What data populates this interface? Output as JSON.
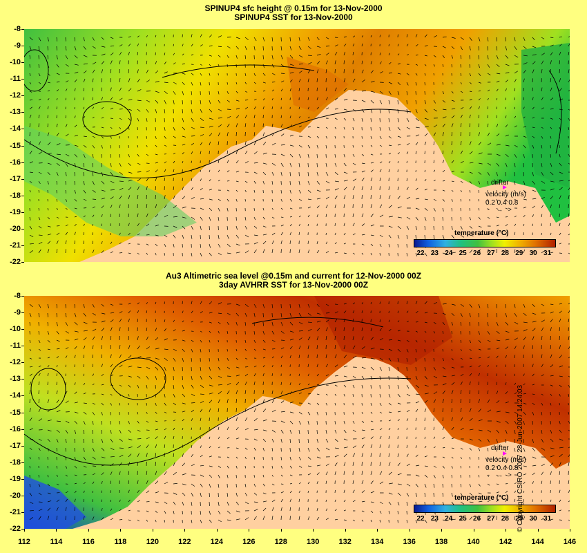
{
  "top_panel": {
    "title_line1": "SPINUP4 sfc height @ 0.15m for 13-Nov-2000",
    "title_line2": "SPINUP4 SST for 13-Nov-2000"
  },
  "bottom_panel": {
    "title_line1": "Au3 Altimetric sea level  @0.15m and current for 12-Nov-2000 00Z",
    "title_line2": "3day AVHRR SST for 13-Nov-2000 00Z"
  },
  "lat_labels": [
    "-8",
    "-9",
    "-10",
    "-11",
    "-12",
    "-13",
    "-14",
    "-15",
    "-16",
    "-17",
    "-18",
    "-19",
    "-20",
    "-21",
    "-22"
  ],
  "lon_labels": [
    "112",
    "114",
    "116",
    "118",
    "120",
    "122",
    "124",
    "126",
    "128",
    "130",
    "132",
    "134",
    "136",
    "138",
    "140",
    "142",
    "144",
    "146"
  ],
  "legend": {
    "drifter": "drifter",
    "velocity": "velocity (m/s)",
    "velocity_scale": "0.2 0.4 0.8",
    "colorbar_title": "temperature (°C)",
    "colorbar_ticks": [
      "22",
      "23",
      "24",
      "25",
      "26",
      "27",
      "28",
      "29",
      "30",
      "31"
    ]
  },
  "copyright": "© Copyright CSIRO 2007   28-Jun-2007 14:24:03",
  "colors": {
    "background": "#ffff80",
    "land": "#ffd0a0",
    "drifter_marker": "#ff00ff"
  }
}
